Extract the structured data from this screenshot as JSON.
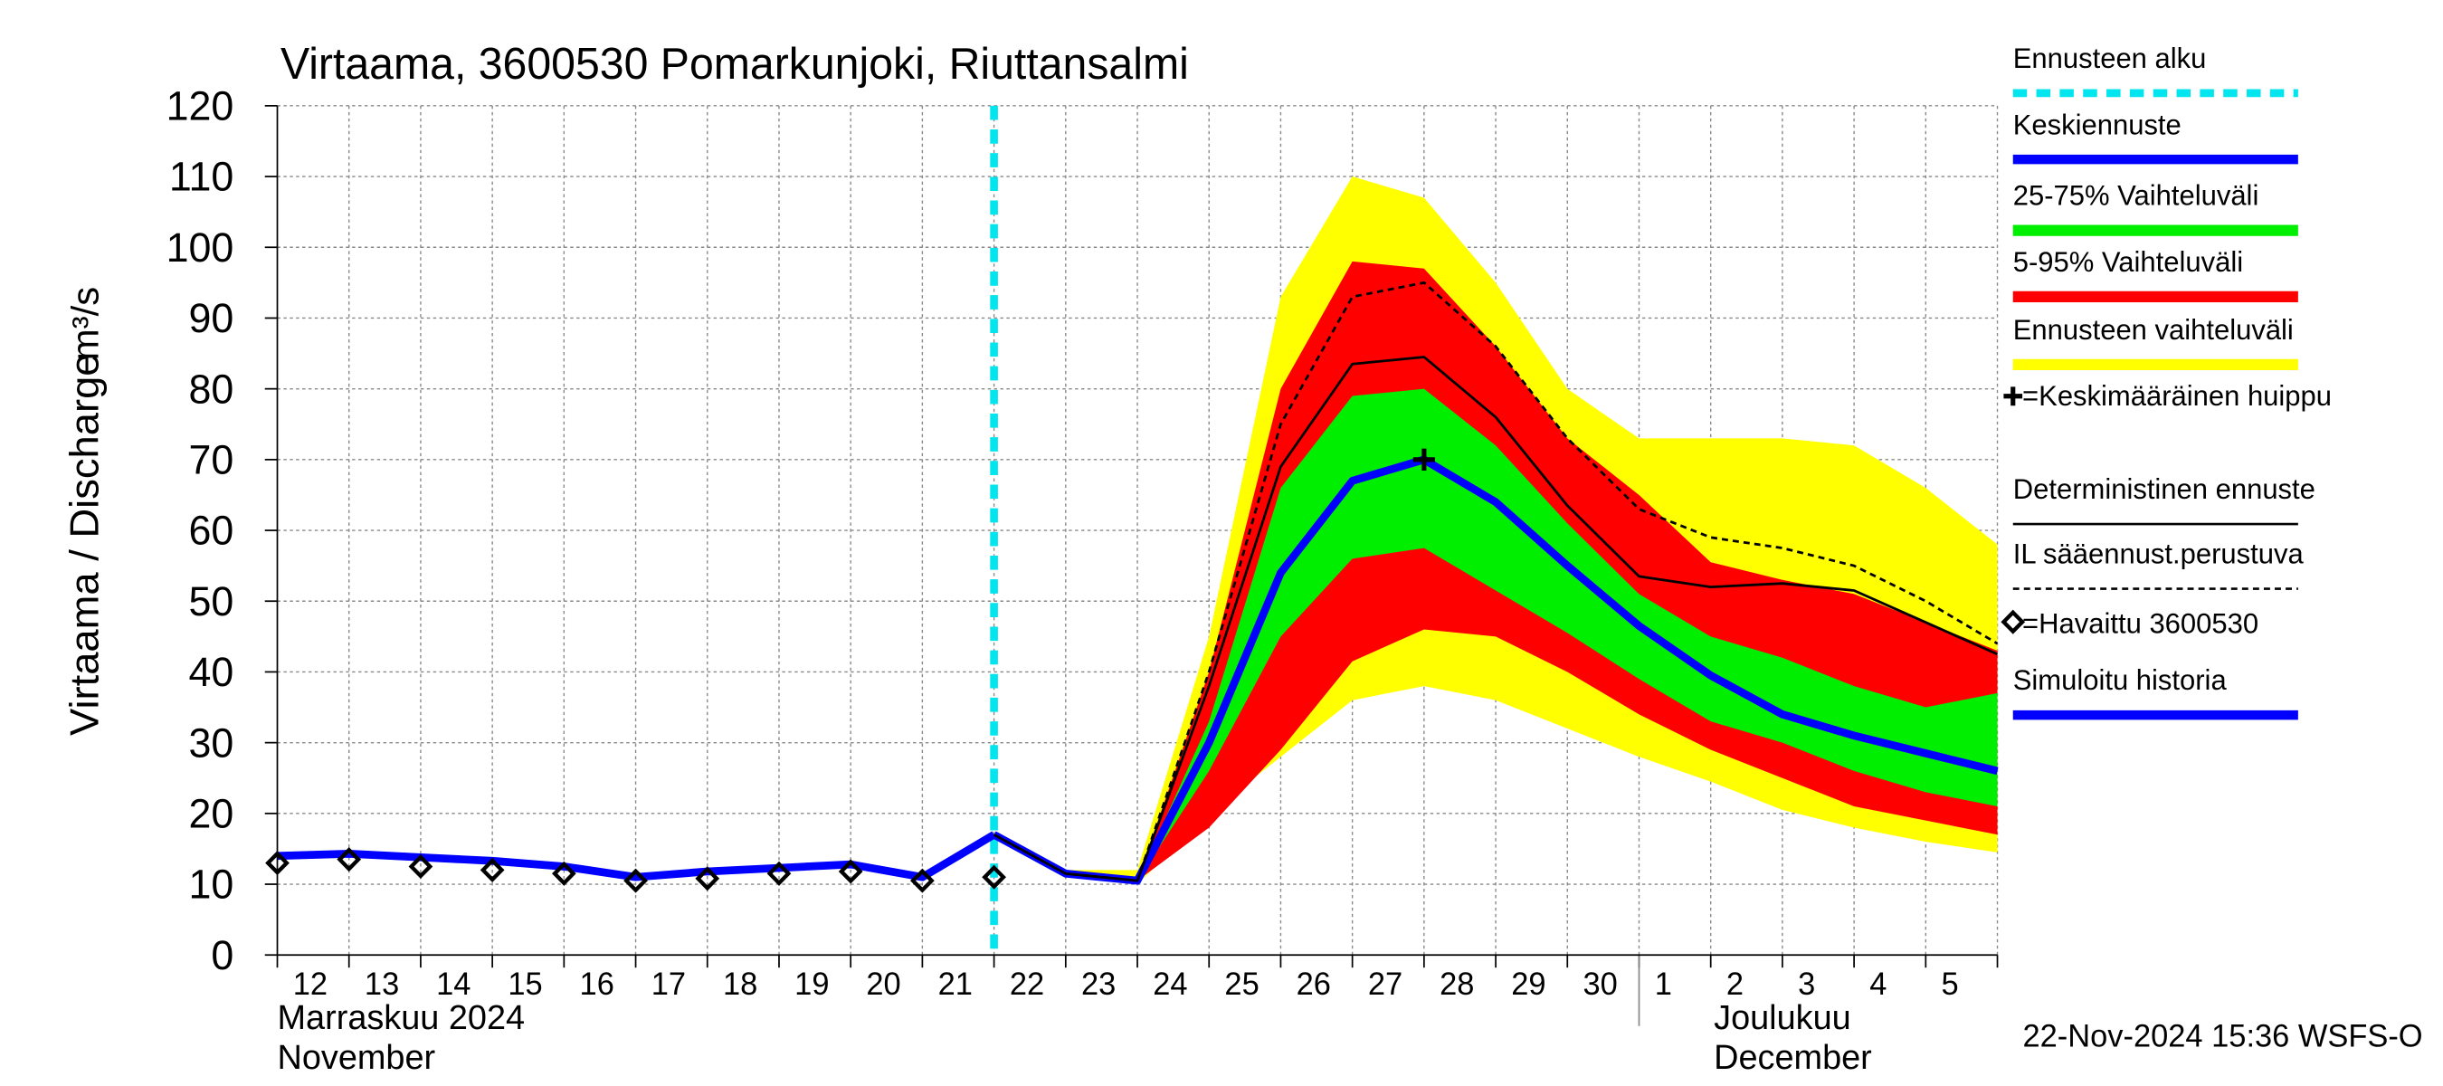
{
  "chart_data": {
    "type": "line",
    "title": "Virtaama, 3600530 Pomarkunjoki, Riuttansalmi",
    "y_label": "Virtaama / Discharge",
    "y_unit": "m³/s",
    "ylim": [
      0,
      120
    ],
    "yticks": [
      0,
      10,
      20,
      30,
      40,
      50,
      60,
      70,
      80,
      90,
      100,
      110,
      120
    ],
    "grid": true,
    "categories": [
      "12",
      "13",
      "14",
      "15",
      "16",
      "17",
      "18",
      "19",
      "20",
      "21",
      "22",
      "23",
      "24",
      "25",
      "26",
      "27",
      "28",
      "29",
      "30",
      "1",
      "2",
      "3",
      "4",
      "5",
      null
    ],
    "months": [
      {
        "label": "Marraskuu 2024",
        "label_en": "November",
        "first_day": "12"
      },
      {
        "label": "Joulukuu",
        "label_en": "December",
        "first_day": "1"
      }
    ],
    "forecast_start": "22",
    "timestamp": "22-Nov-2024 15:36 WSFS-O",
    "series": [
      {
        "name": "Ennusteen alku",
        "kind": "vline",
        "color": "#00e5ee"
      },
      {
        "name": "Keskiennuste",
        "kind": "line",
        "color": "#0000ff",
        "values": [
          null,
          null,
          null,
          null,
          null,
          null,
          null,
          null,
          null,
          null,
          17,
          11.5,
          10.5,
          30,
          54,
          67,
          70,
          64,
          55,
          46.5,
          39.5,
          34,
          31,
          28.5,
          26
        ]
      },
      {
        "name": "25-75% Vaihteluväli",
        "kind": "band",
        "color": "#00ee00",
        "low": [
          null,
          null,
          null,
          null,
          null,
          null,
          null,
          null,
          null,
          null,
          17,
          11.5,
          10.5,
          26,
          45,
          56,
          57.5,
          51.5,
          45.5,
          39,
          33,
          30,
          26,
          23,
          21
        ],
        "high": [
          null,
          null,
          null,
          null,
          null,
          null,
          null,
          null,
          null,
          null,
          17,
          11.5,
          10.5,
          33,
          66,
          79,
          80,
          72,
          61,
          51,
          45,
          42,
          38,
          35,
          37
        ]
      },
      {
        "name": "5-95% Vaihteluväli",
        "kind": "band",
        "color": "#ff0000",
        "low": [
          null,
          null,
          null,
          null,
          null,
          null,
          null,
          null,
          null,
          null,
          17,
          11.5,
          10.5,
          18,
          29,
          41.5,
          46,
          45,
          40,
          34,
          29,
          25,
          21,
          19,
          17
        ],
        "high": [
          null,
          null,
          null,
          null,
          null,
          null,
          null,
          null,
          null,
          null,
          17,
          11.5,
          10.5,
          40,
          80,
          98,
          97,
          86,
          73,
          65,
          55.5,
          53,
          51,
          47,
          43
        ]
      },
      {
        "name": "Ennusteen vaihteluväli",
        "kind": "band",
        "color": "#ffff00",
        "low": [
          null,
          null,
          null,
          null,
          null,
          null,
          null,
          null,
          null,
          null,
          17,
          11,
          10,
          20,
          28,
          36,
          38,
          36,
          32,
          28,
          24.5,
          20.5,
          18,
          16,
          14.5
        ],
        "high": [
          null,
          null,
          null,
          null,
          null,
          null,
          null,
          null,
          null,
          null,
          17,
          12,
          12,
          45,
          93,
          110,
          107,
          95,
          80,
          73,
          73,
          73,
          72,
          66,
          58
        ]
      },
      {
        "name": "=Keskimääräinen huippu",
        "kind": "peak",
        "color": "#000000",
        "x": "28",
        "value": 70
      },
      {
        "name": "Deterministinen ennuste",
        "kind": "line",
        "color": "#000000",
        "values": [
          null,
          null,
          null,
          null,
          null,
          null,
          null,
          null,
          null,
          null,
          17,
          11.5,
          10.5,
          38,
          69,
          83.5,
          84.5,
          76,
          63.5,
          53.5,
          52,
          52.5,
          51.5,
          47,
          42.5
        ]
      },
      {
        "name": "IL sääennust.perustuva",
        "kind": "dashed",
        "color": "#000000",
        "values": [
          null,
          null,
          null,
          null,
          null,
          null,
          null,
          null,
          null,
          null,
          17,
          11.5,
          10.5,
          40,
          75,
          93,
          95,
          86,
          73,
          63,
          59,
          57.5,
          55,
          50,
          44
        ]
      },
      {
        "name": "=Havaittu 3600530",
        "kind": "observed",
        "color": "#000000",
        "values": [
          13,
          13.5,
          12.5,
          12,
          11.5,
          10.5,
          10.8,
          11.5,
          11.8,
          10.5,
          11,
          null,
          null,
          null,
          null,
          null,
          null,
          null,
          null,
          null,
          null,
          null,
          null,
          null,
          null
        ]
      },
      {
        "name": "Simuloitu historia",
        "kind": "line",
        "color": "#0000ff",
        "values": [
          14,
          14.3,
          13.8,
          13.3,
          12.5,
          11,
          11.8,
          12.3,
          12.8,
          11,
          17,
          null,
          null,
          null,
          null,
          null,
          null,
          null,
          null,
          null,
          null,
          null,
          null,
          null,
          null
        ]
      }
    ]
  }
}
